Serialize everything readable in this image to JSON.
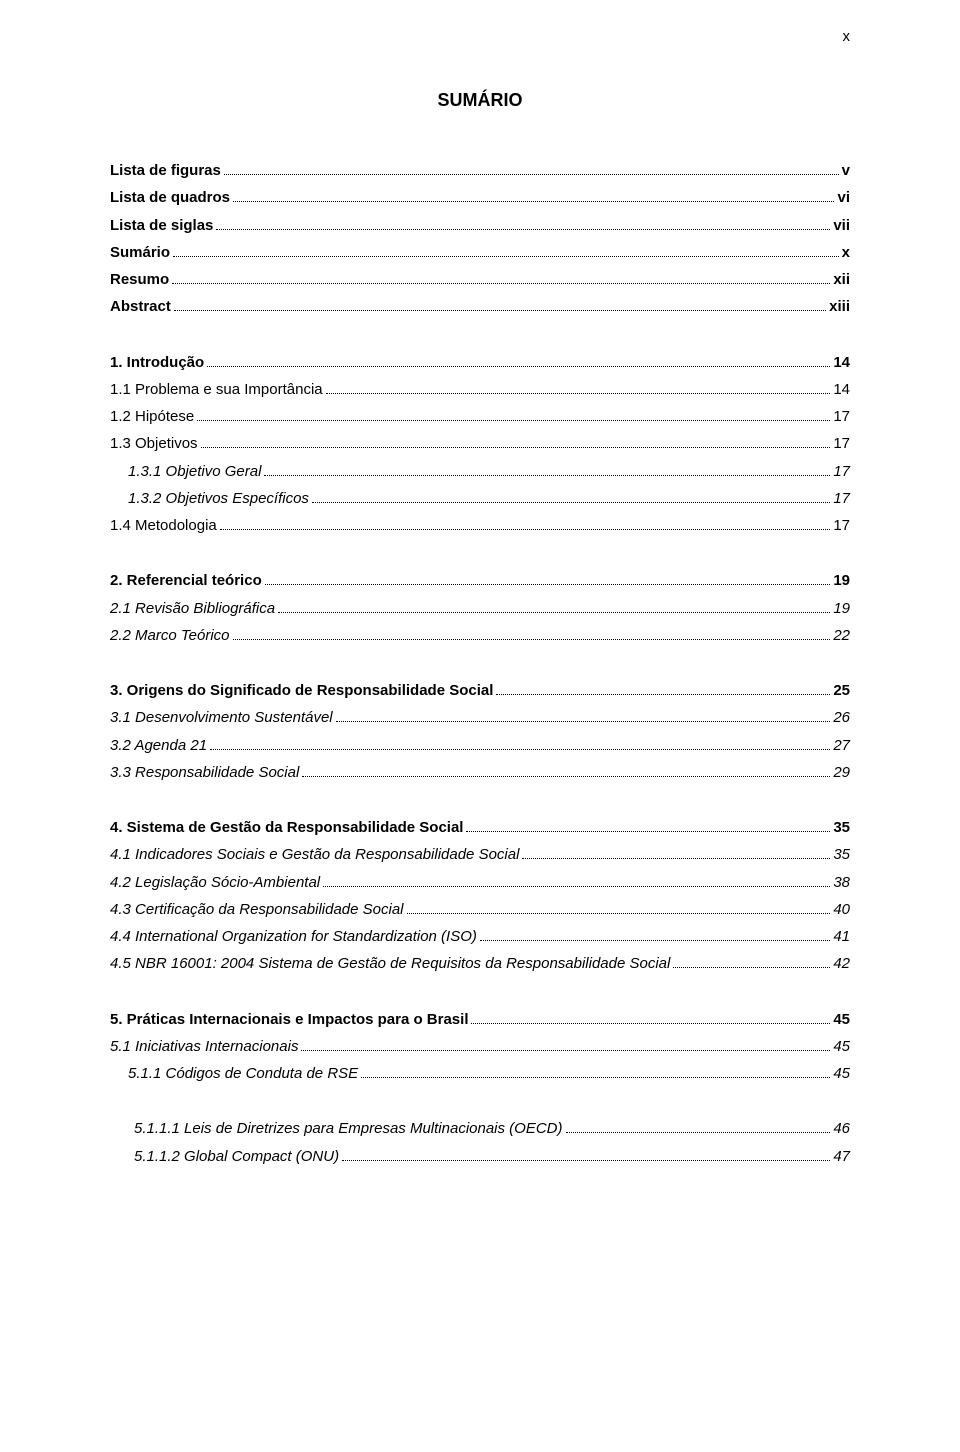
{
  "page_label": "x",
  "title": "SUMÁRIO",
  "entries": [
    {
      "label": "Lista de figuras",
      "page": "v",
      "bold": true,
      "italic": false,
      "indent": 0,
      "gap_before": false
    },
    {
      "label": "Lista de quadros",
      "page": "vi",
      "bold": true,
      "italic": false,
      "indent": 0,
      "gap_before": false
    },
    {
      "label": "Lista de siglas",
      "page": "vii",
      "bold": true,
      "italic": false,
      "indent": 0,
      "gap_before": false
    },
    {
      "label": "Sumário",
      "page": "x",
      "bold": true,
      "italic": false,
      "indent": 0,
      "gap_before": false
    },
    {
      "label": "Resumo",
      "page": "xii",
      "bold": true,
      "italic": false,
      "indent": 0,
      "gap_before": false
    },
    {
      "label": "Abstract",
      "page": "xiii",
      "bold": true,
      "italic": false,
      "indent": 0,
      "gap_before": false
    },
    {
      "label": "1. Introdução",
      "page": "14",
      "bold": true,
      "italic": false,
      "indent": 0,
      "gap_before": true
    },
    {
      "label": "1.1   Problema e sua Importância",
      "page": "14",
      "bold": false,
      "italic": false,
      "indent": 0,
      "gap_before": false
    },
    {
      "label": "1.2 Hipótese",
      "page": "17",
      "bold": false,
      "italic": false,
      "indent": 0,
      "gap_before": false
    },
    {
      "label": "1.3 Objetivos",
      "page": "17",
      "bold": false,
      "italic": false,
      "indent": 0,
      "gap_before": false
    },
    {
      "label": "1.3.1 Objetivo Geral",
      "page": "17",
      "bold": false,
      "italic": true,
      "indent": 1,
      "gap_before": false
    },
    {
      "label": "1.3.2 Objetivos Específicos",
      "page": "17",
      "bold": false,
      "italic": true,
      "indent": 1,
      "gap_before": false
    },
    {
      "label": "1.4 Metodologia",
      "page": "17",
      "bold": false,
      "italic": false,
      "indent": 0,
      "gap_before": false
    },
    {
      "label": "2. Referencial teórico",
      "page": "19",
      "bold": true,
      "italic": false,
      "indent": 0,
      "gap_before": true
    },
    {
      "label": "2.1 Revisão Bibliográfica",
      "page": "19",
      "bold": false,
      "italic": true,
      "indent": 0,
      "gap_before": false
    },
    {
      "label": "2.2 Marco Teórico",
      "page": "22",
      "bold": false,
      "italic": true,
      "indent": 0,
      "gap_before": false
    },
    {
      "label": "3. Origens do Significado de Responsabilidade Social",
      "page": "25",
      "bold": true,
      "italic": false,
      "indent": 0,
      "gap_before": true
    },
    {
      "label": "3.1 Desenvolvimento Sustentável",
      "page": "26",
      "bold": false,
      "italic": true,
      "indent": 0,
      "gap_before": false
    },
    {
      "label": "3.2 Agenda 21",
      "page": "27",
      "bold": false,
      "italic": true,
      "indent": 0,
      "gap_before": false
    },
    {
      "label": "3.3 Responsabilidade Social",
      "page": "29",
      "bold": false,
      "italic": true,
      "indent": 0,
      "gap_before": false
    },
    {
      "label": "4. Sistema de Gestão da Responsabilidade Social",
      "page": "35",
      "bold": true,
      "italic": false,
      "indent": 0,
      "gap_before": true
    },
    {
      "label": "4.1 Indicadores Sociais e Gestão da Responsabilidade Social",
      "page": "35",
      "bold": false,
      "italic": true,
      "indent": 0,
      "gap_before": false
    },
    {
      "label": "4.2 Legislação Sócio-Ambiental",
      "page": "38",
      "bold": false,
      "italic": true,
      "indent": 0,
      "gap_before": false
    },
    {
      "label": "4.3 Certificação da Responsabilidade Social",
      "page": "40",
      "bold": false,
      "italic": true,
      "indent": 0,
      "gap_before": false
    },
    {
      "label": "4.4 International Organization for Standardization (ISO)",
      "page": "41",
      "bold": false,
      "italic": true,
      "indent": 0,
      "gap_before": false
    },
    {
      "label": "4.5 NBR 16001: 2004 Sistema de Gestão de Requisitos da Responsabilidade Social",
      "page": "42",
      "bold": false,
      "italic": true,
      "indent": 0,
      "gap_before": false
    },
    {
      "label": "5. Práticas Internacionais e Impactos para o Brasil",
      "page": "45",
      "bold": true,
      "italic": false,
      "indent": 0,
      "gap_before": true
    },
    {
      "label": "5.1 Iniciativas Internacionais",
      "page": "45",
      "bold": false,
      "italic": true,
      "indent": 0,
      "gap_before": false
    },
    {
      "label": "5.1.1 Códigos de Conduta de RSE",
      "page": "45",
      "bold": false,
      "italic": true,
      "indent": 1,
      "gap_before": false
    },
    {
      "label": "5.1.1.1 Leis de Diretrizes para Empresas Multinacionais (OECD)",
      "page": "46",
      "bold": false,
      "italic": true,
      "indent": 2,
      "gap_before": true
    },
    {
      "label": "5.1.1.2 Global Compact (ONU)",
      "page": "47",
      "bold": false,
      "italic": true,
      "indent": 2,
      "gap_before": false
    }
  ]
}
